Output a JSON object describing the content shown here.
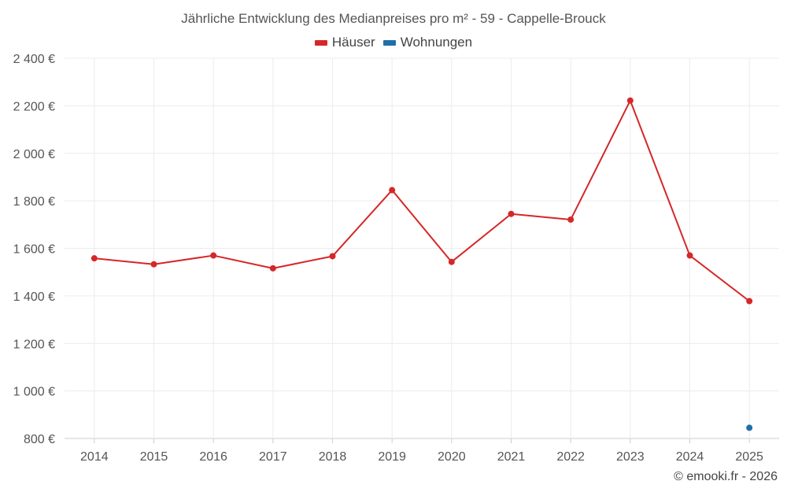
{
  "chart_data": {
    "type": "line",
    "title": "Jährliche Entwicklung des Medianpreises pro m² - 59 - Cappelle-Brouck",
    "categories": [
      "2014",
      "2015",
      "2016",
      "2017",
      "2018",
      "2019",
      "2020",
      "2021",
      "2022",
      "2023",
      "2024",
      "2025"
    ],
    "ylim": [
      800,
      2400
    ],
    "yticks": [
      800,
      1000,
      1200,
      1400,
      1600,
      1800,
      2000,
      2200,
      2400
    ],
    "ytick_labels": [
      "800 €",
      "1 000 €",
      "1 200 €",
      "1 400 €",
      "1 600 €",
      "1 800 €",
      "2 000 €",
      "2 200 €",
      "2 400 €"
    ],
    "grid": true,
    "legend_position": "top-center",
    "series": [
      {
        "name": "Häuser",
        "color": "#d62728",
        "values": [
          1558,
          1533,
          1570,
          1516,
          1567,
          1845,
          1543,
          1745,
          1721,
          2222,
          1570,
          1378
        ]
      },
      {
        "name": "Wohnungen",
        "color": "#1f6fa8",
        "values": [
          null,
          null,
          null,
          null,
          null,
          null,
          null,
          null,
          null,
          null,
          null,
          845
        ]
      }
    ]
  },
  "credit": "© emooki.fr - 2026"
}
